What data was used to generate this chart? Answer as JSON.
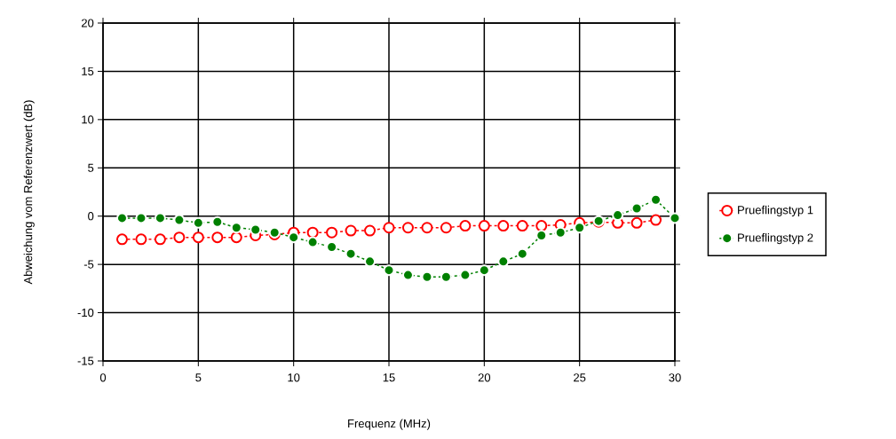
{
  "chart_data": {
    "type": "line",
    "xlabel": "Frequenz   (MHz)",
    "ylabel": "Abweichung vom Referenzwert  (dB)",
    "x": [
      1,
      2,
      3,
      4,
      5,
      6,
      7,
      8,
      9,
      10,
      11,
      12,
      13,
      14,
      15,
      16,
      17,
      18,
      19,
      20,
      21,
      22,
      23,
      24,
      25,
      26,
      27,
      28,
      29,
      30
    ],
    "series": [
      {
        "name": "Prueflingstyp 1",
        "color": "#ff0000",
        "values": [
          -2.4,
          -2.4,
          -2.4,
          -2.2,
          -2.2,
          -2.2,
          -2.2,
          -2.0,
          -1.9,
          -1.7,
          -1.7,
          -1.7,
          -1.5,
          -1.5,
          -1.2,
          -1.2,
          -1.2,
          -1.2,
          -1.0,
          -1.0,
          -1.0,
          -1.0,
          -1.0,
          -0.9,
          -0.7,
          -0.6,
          -0.7,
          -0.7,
          -0.4,
          null
        ]
      },
      {
        "name": "Prueflingstyp 2",
        "color": "#008000",
        "values": [
          -0.2,
          -0.2,
          -0.2,
          -0.4,
          -0.7,
          -0.6,
          -1.2,
          -1.4,
          -1.7,
          -2.2,
          -2.7,
          -3.2,
          -3.9,
          -4.7,
          -5.6,
          -6.1,
          -6.3,
          -6.3,
          -6.1,
          -5.6,
          -4.7,
          -3.9,
          -2.0,
          -1.7,
          -1.2,
          -0.5,
          0.1,
          0.8,
          1.7,
          -0.2
        ]
      }
    ],
    "xlim": [
      0,
      30
    ],
    "xticks": [
      0,
      5,
      10,
      15,
      20,
      25,
      30
    ],
    "ylim": [
      -15,
      20
    ],
    "yticks": [
      -15,
      -10,
      -5,
      0,
      5,
      10,
      15,
      20
    ],
    "grid": true,
    "legend": "right",
    "marker": "circle",
    "line_style": "dashed"
  }
}
